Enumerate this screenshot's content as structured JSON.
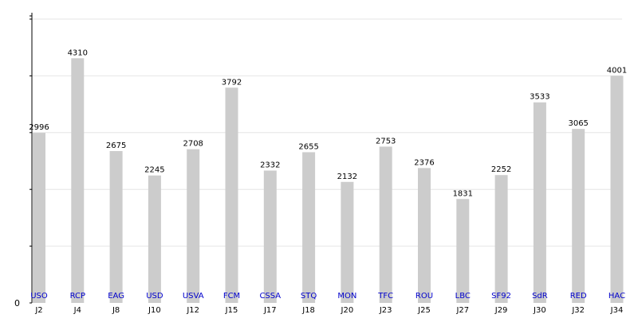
{
  "chart_data": {
    "type": "bar",
    "title": "",
    "xlabel": "",
    "ylabel": "",
    "ylim": [
      0,
      5000
    ],
    "grid": true,
    "y_tick_labels": [
      "0"
    ],
    "categories": [
      "J2",
      "J4",
      "J8",
      "J10",
      "J12",
      "J15",
      "J17",
      "J18",
      "J20",
      "J23",
      "J25",
      "J27",
      "J29",
      "J30",
      "J32",
      "J34"
    ],
    "opponents": [
      "USO",
      "RCP",
      "EAG",
      "USD",
      "USVA",
      "FCM",
      "CSSA",
      "STQ",
      "MON",
      "TFC",
      "ROU",
      "LBC",
      "SF92",
      "SdR",
      "RED",
      "HAC"
    ],
    "values": [
      2996,
      4310,
      2675,
      2245,
      2708,
      3792,
      2332,
      2655,
      2132,
      2753,
      2376,
      1831,
      2252,
      3533,
      3065,
      4001
    ],
    "bar_color": "#cccccc",
    "opponent_label_color": "#0000cc",
    "grid_color": "#e6e6e6",
    "axis_color": "#000000"
  }
}
